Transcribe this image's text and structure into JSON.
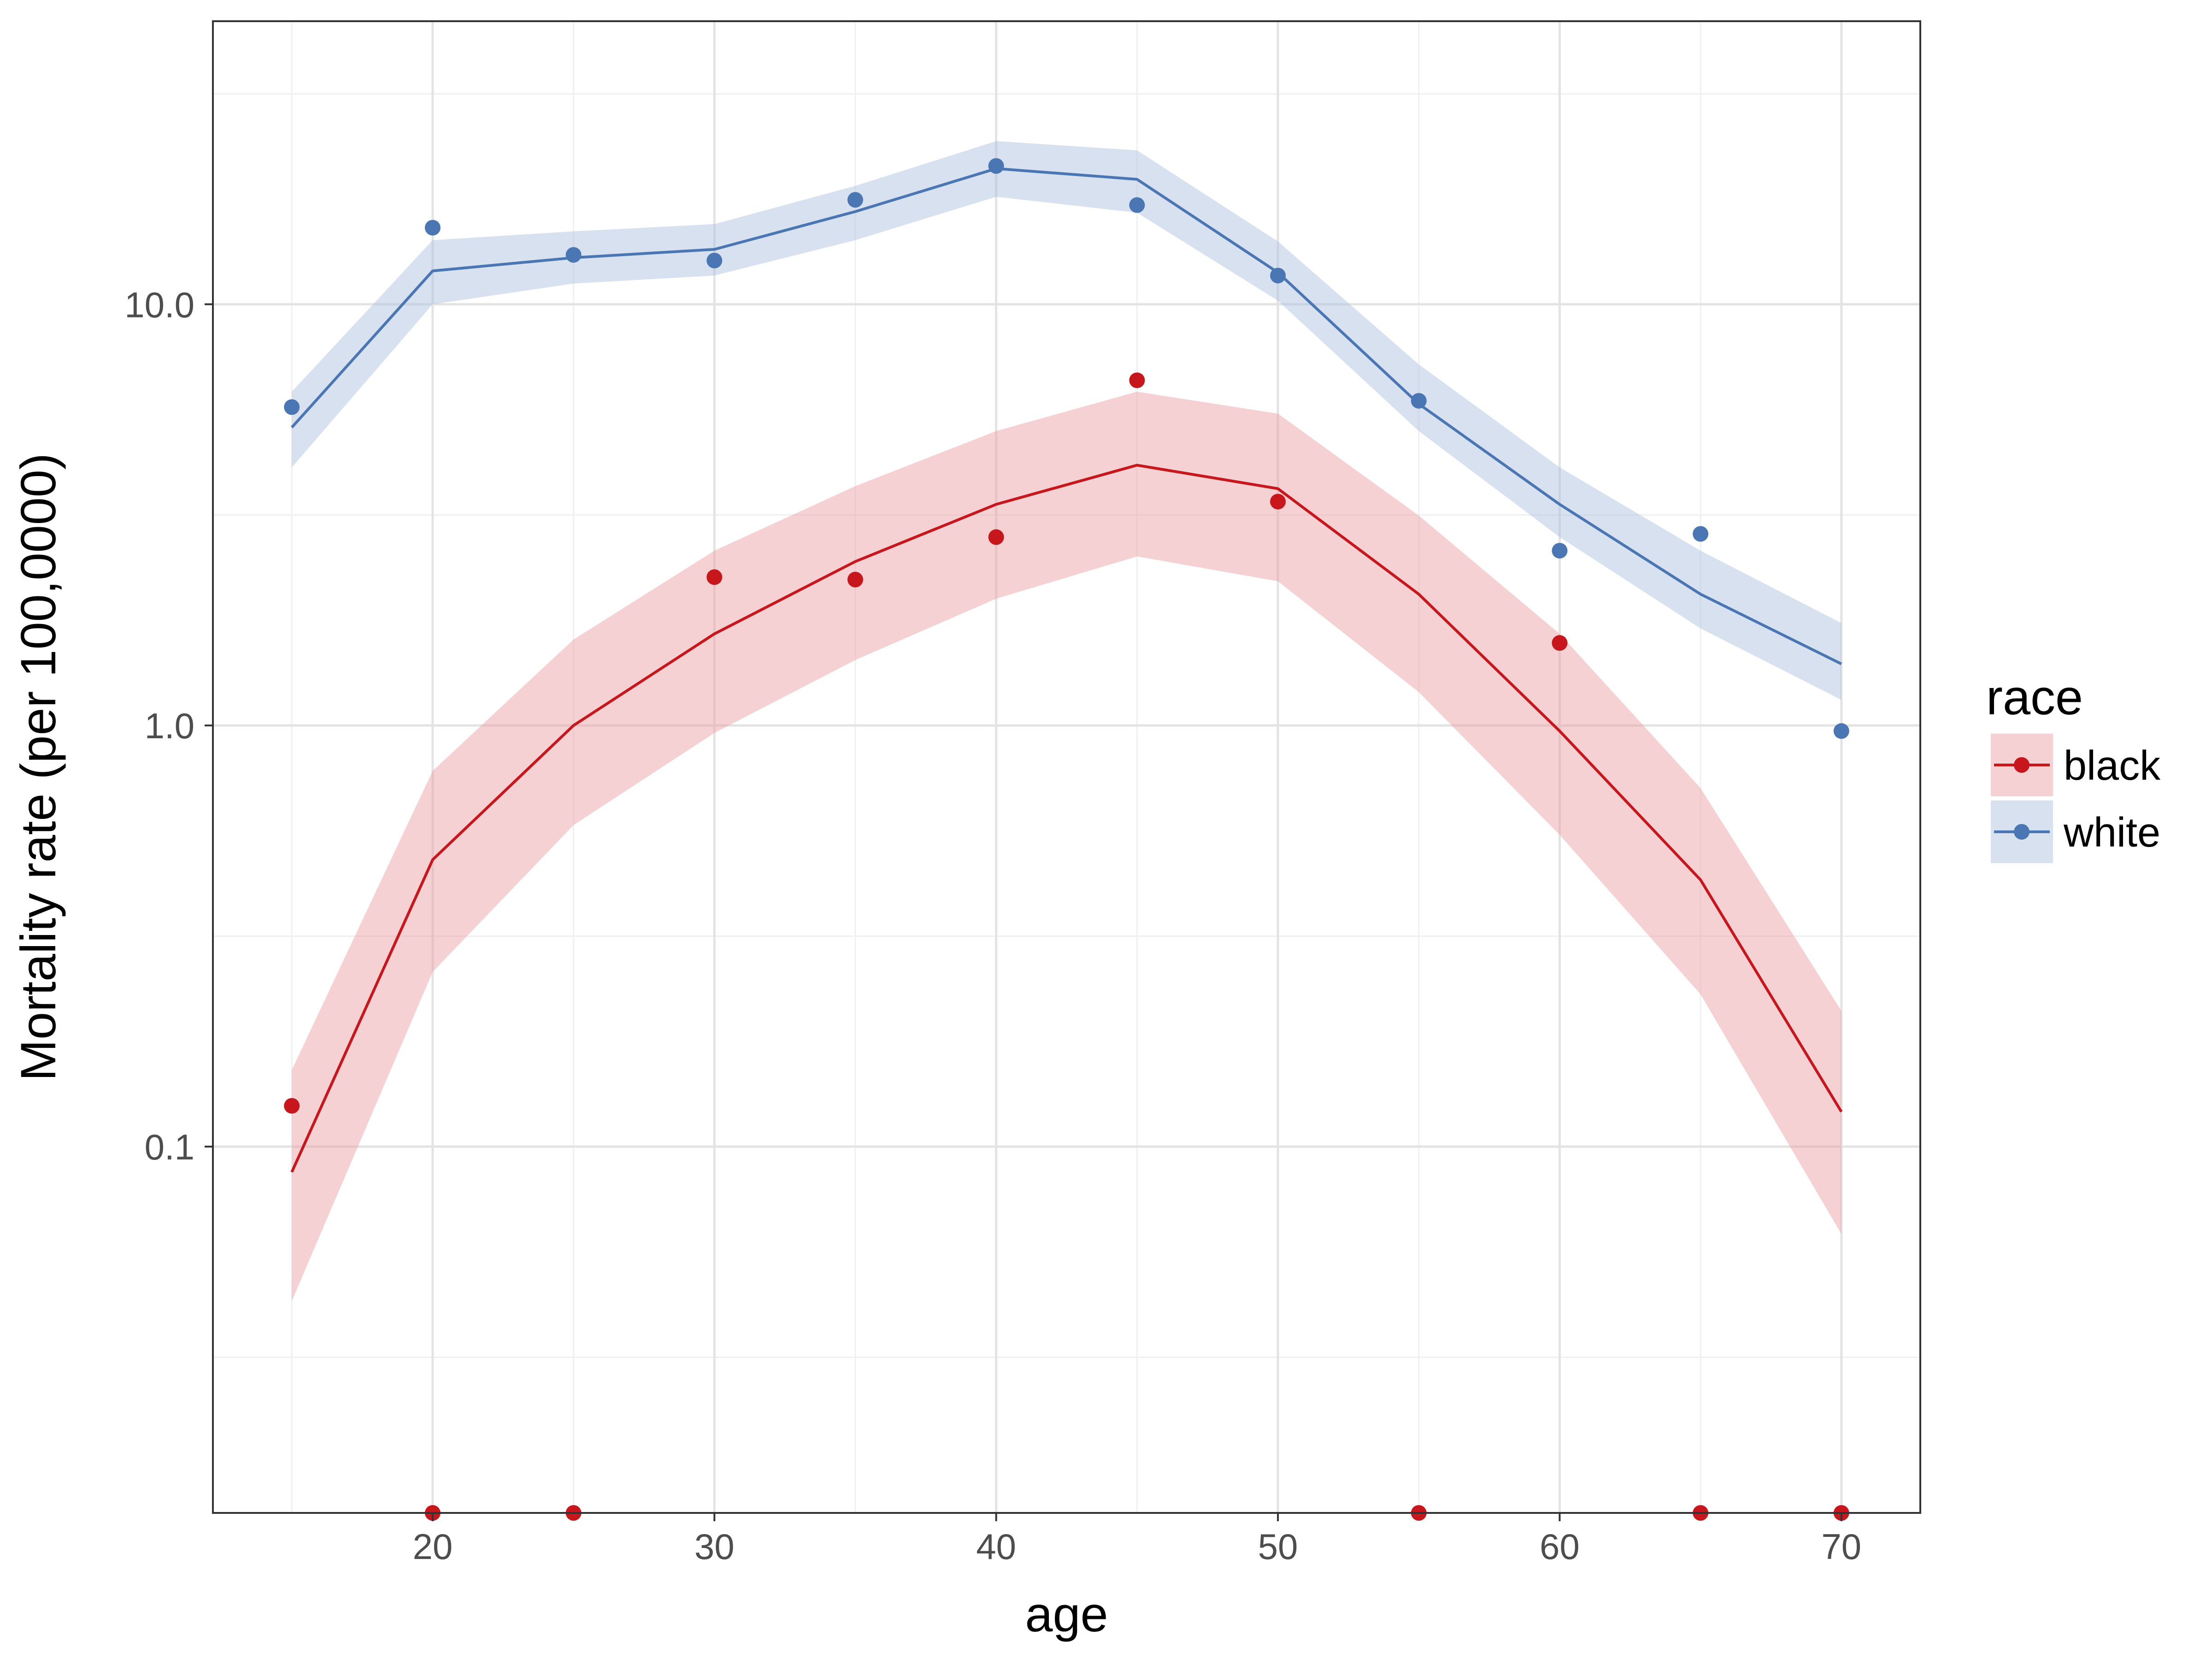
{
  "chart_data": {
    "type": "line",
    "xlabel": "age",
    "ylabel": "Mortality rate (per 100,0000)",
    "x_ticks": [
      20,
      30,
      40,
      50,
      60,
      70
    ],
    "x_tick_labels": [
      "20",
      "30",
      "40",
      "50",
      "60",
      "70"
    ],
    "y_ticks": [
      0.1,
      1.0,
      10.0
    ],
    "y_tick_labels": [
      "0.1",
      "1.0",
      "10.0"
    ],
    "y_scale": "log10",
    "xlim": [
      12.2,
      72.8
    ],
    "ylim": [
      0.0135,
      47
    ],
    "grid": true,
    "legend": {
      "title": "race",
      "placement": "right",
      "entries": [
        "black",
        "white"
      ]
    },
    "series": [
      {
        "name": "black",
        "color": "#c8161d",
        "band_color": "#e99aa0",
        "x": [
          15,
          20,
          25,
          30,
          35,
          40,
          45,
          50,
          55,
          60,
          65,
          70
        ],
        "observed": [
          0.125,
          0.0135,
          0.0135,
          2.25,
          2.22,
          2.8,
          6.6,
          3.4,
          0.0135,
          1.57,
          0.0135,
          0.0135
        ],
        "fit": [
          0.087,
          0.48,
          1.0,
          1.65,
          2.45,
          3.35,
          4.15,
          3.65,
          2.05,
          0.97,
          0.43,
          0.121
        ],
        "lower": [
          0.043,
          0.26,
          0.58,
          0.96,
          1.43,
          2.0,
          2.52,
          2.2,
          1.2,
          0.55,
          0.23,
          0.062
        ],
        "upper": [
          0.152,
          0.78,
          1.6,
          2.6,
          3.7,
          5.0,
          6.2,
          5.5,
          3.15,
          1.65,
          0.71,
          0.21
        ]
      },
      {
        "name": "white",
        "color": "#4a77b4",
        "band_color": "#a9bcdc",
        "x": [
          15,
          20,
          25,
          30,
          35,
          40,
          45,
          50,
          55,
          60,
          65,
          70
        ],
        "observed": [
          5.7,
          15.2,
          13.1,
          12.7,
          17.7,
          21.3,
          17.2,
          11.7,
          5.9,
          2.6,
          2.85,
          0.97
        ],
        "fit": [
          5.1,
          12.0,
          12.9,
          13.5,
          16.6,
          21.0,
          19.8,
          11.9,
          5.8,
          3.35,
          2.05,
          1.4
        ],
        "lower": [
          4.1,
          10.0,
          11.2,
          11.7,
          14.2,
          18.0,
          16.5,
          10.2,
          5.0,
          2.8,
          1.7,
          1.15
        ],
        "upper": [
          6.2,
          14.2,
          14.9,
          15.5,
          19.1,
          24.4,
          23.2,
          14.1,
          7.2,
          4.1,
          2.6,
          1.75
        ]
      }
    ]
  }
}
